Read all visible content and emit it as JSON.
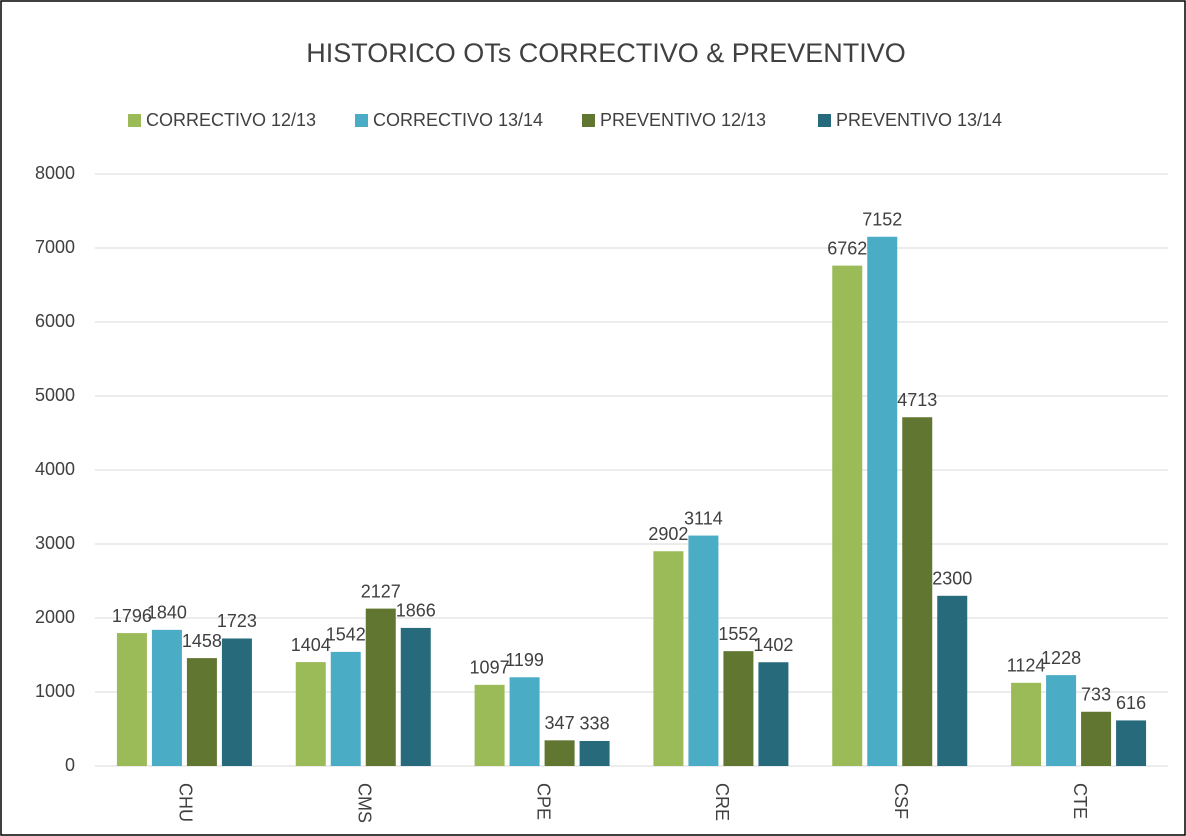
{
  "chart_data": {
    "type": "bar",
    "title": "HISTORICO OTs CORRECTIVO & PREVENTIVO",
    "categories": [
      "CHU",
      "CMS",
      "CPE",
      "CRE",
      "CSF",
      "CTE"
    ],
    "series": [
      {
        "name": "CORRECTIVO 12/13",
        "color": "#9bbb59",
        "values": [
          1796,
          1404,
          1097,
          2902,
          6762,
          1124
        ]
      },
      {
        "name": "CORRECTIVO 13/14",
        "color": "#4bacc6",
        "values": [
          1840,
          1542,
          1199,
          3114,
          7152,
          1228
        ]
      },
      {
        "name": "PREVENTIVO 12/13",
        "color": "#617731",
        "values": [
          1458,
          2127,
          347,
          1552,
          4713,
          733
        ]
      },
      {
        "name": "PREVENTIVO 13/14",
        "color": "#276a7c",
        "values": [
          1723,
          1866,
          338,
          1402,
          2300,
          616
        ]
      }
    ],
    "ylim": [
      0,
      8000
    ],
    "yticks": [
      0,
      1000,
      2000,
      3000,
      4000,
      5000,
      6000,
      7000,
      8000
    ],
    "grid": true,
    "legend": "top"
  }
}
